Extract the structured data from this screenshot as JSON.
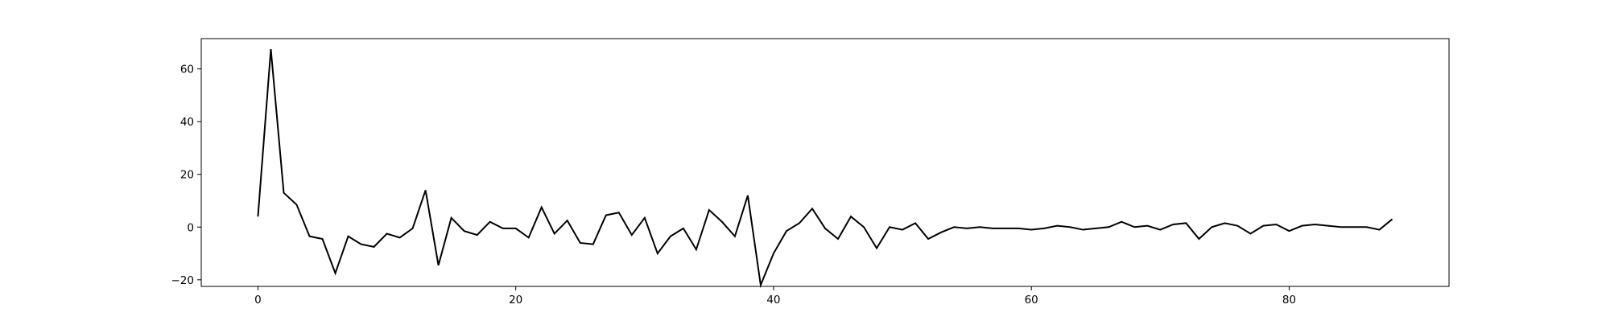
{
  "chart_data": {
    "type": "line",
    "title": "",
    "xlabel": "",
    "ylabel": "",
    "xlim": [
      -4.4,
      92.4
    ],
    "ylim": [
      -22.5,
      71.5
    ],
    "xticks": [
      0,
      20,
      40,
      60,
      80
    ],
    "yticks": [
      -20,
      0,
      20,
      40,
      60
    ],
    "xtick_labels": [
      "0",
      "20",
      "40",
      "60",
      "80"
    ],
    "ytick_labels": [
      "−20",
      "0",
      "20",
      "40",
      "60"
    ],
    "grid": false,
    "legend": "none",
    "line_color": "#000000",
    "series": [
      {
        "x": [
          0,
          1,
          2,
          3,
          4,
          5,
          6,
          7,
          8,
          9,
          10,
          11,
          12,
          13,
          14,
          15,
          16,
          17,
          18,
          19,
          20,
          21,
          22,
          23,
          24,
          25,
          26,
          27,
          28,
          29,
          30,
          31,
          32,
          33,
          34,
          35,
          36,
          37,
          38,
          39,
          40,
          41,
          42,
          43,
          44,
          45,
          46,
          47,
          48,
          49,
          50,
          51,
          52,
          53,
          54,
          55,
          56,
          57,
          58,
          59,
          60,
          61,
          62,
          63,
          64,
          65,
          66,
          67,
          68,
          69,
          70,
          71,
          72,
          73,
          74,
          75,
          76,
          77,
          78,
          79,
          80,
          81,
          82,
          83,
          84,
          85,
          86,
          87,
          88
        ],
        "values": [
          4,
          67.5,
          13,
          8.5,
          -3.5,
          -4.5,
          -17.5,
          -3.5,
          -6.5,
          -7.5,
          -2.5,
          -4,
          -0.5,
          14,
          -14.5,
          3.5,
          -1.5,
          -3,
          2,
          -0.5,
          -0.5,
          -4,
          7.5,
          -2.5,
          2.5,
          -6,
          -6.5,
          4.5,
          5.5,
          -3,
          3.5,
          -10,
          -3.5,
          -0.5,
          -8.5,
          6.5,
          2,
          -3.5,
          12,
          -22,
          -10,
          -1.5,
          1.5,
          7,
          -0.5,
          -4.5,
          4,
          0,
          -8,
          0,
          -1,
          1.5,
          -4.5,
          -2,
          0,
          -0.5,
          0,
          -0.5,
          -0.5,
          -0.5,
          -1,
          -0.5,
          0.5,
          0,
          -1,
          -0.5,
          0,
          2,
          0,
          0.5,
          -1,
          1,
          1.5,
          -4.5,
          0,
          1.5,
          0.5,
          -2.5,
          0.5,
          1,
          -1.5,
          0.5,
          1,
          0.5,
          0,
          0,
          0,
          -1,
          3
        ]
      }
    ]
  }
}
